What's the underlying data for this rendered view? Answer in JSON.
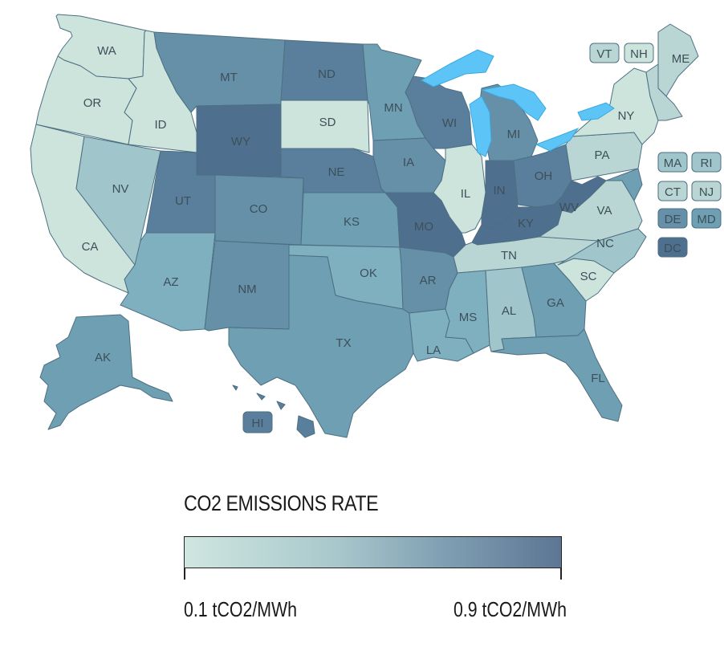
{
  "colors": {
    "c1": "#cde4dd",
    "c2": "#b9d6d5",
    "c3": "#a0c5cb",
    "c4": "#7fb0bf",
    "c5": "#6e9fb3",
    "c6": "#6590a8",
    "c7": "#5a7f9c",
    "c8": "#4f6f8f",
    "lake": "#5cc4f6"
  },
  "states": [
    {
      "id": "WA",
      "label": "WA",
      "shade": "c1"
    },
    {
      "id": "OR",
      "label": "OR",
      "shade": "c1"
    },
    {
      "id": "CA",
      "label": "CA",
      "shade": "c1"
    },
    {
      "id": "ID",
      "label": "ID",
      "shade": "c1"
    },
    {
      "id": "NV",
      "label": "NV",
      "shade": "c3"
    },
    {
      "id": "MT",
      "label": "MT",
      "shade": "c6"
    },
    {
      "id": "WY",
      "label": "WY",
      "shade": "c8"
    },
    {
      "id": "UT",
      "label": "UT",
      "shade": "c7"
    },
    {
      "id": "AZ",
      "label": "AZ",
      "shade": "c4"
    },
    {
      "id": "CO",
      "label": "CO",
      "shade": "c6"
    },
    {
      "id": "NM",
      "label": "NM",
      "shade": "c6"
    },
    {
      "id": "ND",
      "label": "ND",
      "shade": "c7"
    },
    {
      "id": "SD",
      "label": "SD",
      "shade": "c1"
    },
    {
      "id": "NE",
      "label": "NE",
      "shade": "c7"
    },
    {
      "id": "KS",
      "label": "KS",
      "shade": "c5"
    },
    {
      "id": "OK",
      "label": "OK",
      "shade": "c4"
    },
    {
      "id": "TX",
      "label": "TX",
      "shade": "c5"
    },
    {
      "id": "MN",
      "label": "MN",
      "shade": "c5"
    },
    {
      "id": "IA",
      "label": "IA",
      "shade": "c6"
    },
    {
      "id": "MO",
      "label": "MO",
      "shade": "c8"
    },
    {
      "id": "AR",
      "label": "AR",
      "shade": "c6"
    },
    {
      "id": "LA",
      "label": "LA",
      "shade": "c4"
    },
    {
      "id": "WI",
      "label": "WI",
      "shade": "c7"
    },
    {
      "id": "IL",
      "label": "IL",
      "shade": "c1"
    },
    {
      "id": "MI",
      "label": "MI",
      "shade": "c6"
    },
    {
      "id": "IN",
      "label": "IN",
      "shade": "c8"
    },
    {
      "id": "OH",
      "label": "OH",
      "shade": "c7"
    },
    {
      "id": "KY",
      "label": "KY",
      "shade": "c8"
    },
    {
      "id": "TN",
      "label": "TN",
      "shade": "c2"
    },
    {
      "id": "MS",
      "label": "MS",
      "shade": "c4"
    },
    {
      "id": "AL",
      "label": "AL",
      "shade": "c3"
    },
    {
      "id": "GA",
      "label": "GA",
      "shade": "c5"
    },
    {
      "id": "FL",
      "label": "FL",
      "shade": "c5"
    },
    {
      "id": "SC",
      "label": "SC",
      "shade": "c1"
    },
    {
      "id": "NC",
      "label": "NC",
      "shade": "c3"
    },
    {
      "id": "VA",
      "label": "VA",
      "shade": "c2"
    },
    {
      "id": "WV",
      "label": "WV",
      "shade": "c8"
    },
    {
      "id": "PA",
      "label": "PA",
      "shade": "c2"
    },
    {
      "id": "NY",
      "label": "NY",
      "shade": "c1"
    },
    {
      "id": "ME",
      "label": "ME",
      "shade": "c2"
    },
    {
      "id": "AK",
      "label": "AK",
      "shade": "c5"
    },
    {
      "id": "HI",
      "label": "HI",
      "shade": "c7"
    }
  ],
  "small_states": [
    {
      "id": "VT",
      "label": "VT",
      "shade": "c2"
    },
    {
      "id": "NH",
      "label": "NH",
      "shade": "c1"
    },
    {
      "id": "MA",
      "label": "MA",
      "shade": "c3"
    },
    {
      "id": "RI",
      "label": "RI",
      "shade": "c3"
    },
    {
      "id": "CT",
      "label": "CT",
      "shade": "c2"
    },
    {
      "id": "NJ",
      "label": "NJ",
      "shade": "c2"
    },
    {
      "id": "DE",
      "label": "DE",
      "shade": "c6"
    },
    {
      "id": "MD",
      "label": "MD",
      "shade": "c5"
    },
    {
      "id": "DC",
      "label": "DC",
      "shade": "c8"
    }
  ],
  "legend": {
    "title": "CO2 EMISSIONS RATE",
    "min_label": "0.1 tCO2/MWh",
    "max_label": "0.9 tCO2/MWh",
    "min_value": 0.1,
    "max_value": 0.9,
    "unit": "tCO2/MWh"
  }
}
